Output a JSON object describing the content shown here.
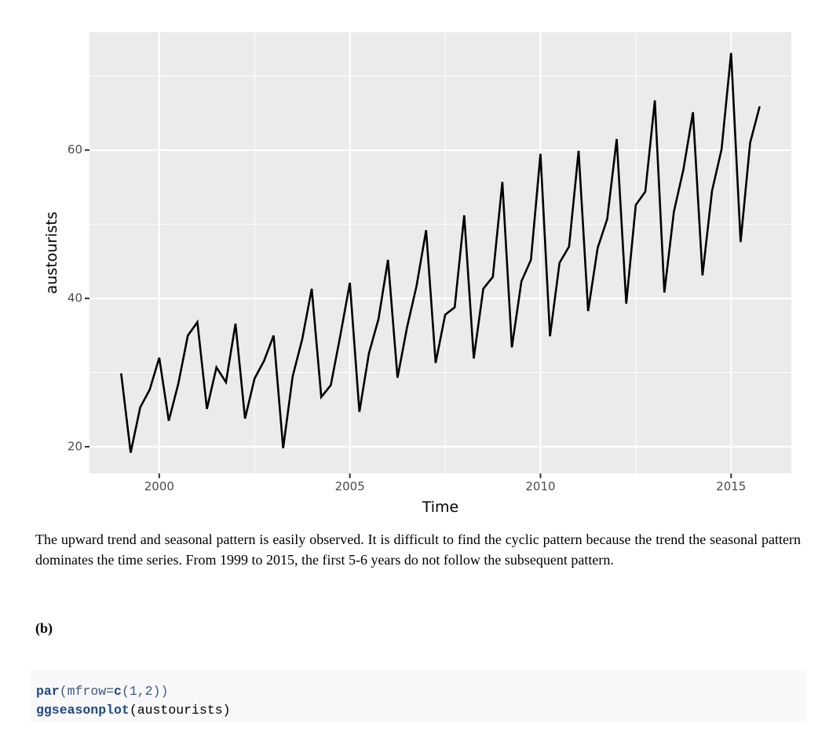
{
  "chart_data": {
    "type": "line",
    "x_label": "Time",
    "y_label": "austourists",
    "color": "#000000",
    "grid": true,
    "xlim": [
      1998.17,
      2016.58
    ],
    "ylim": [
      16.4,
      75.9
    ],
    "xticks": [
      2000,
      2005,
      2010,
      2015
    ],
    "yticks": [
      20,
      40,
      60
    ],
    "x_minor_ticks": [
      2002.5,
      2007.5,
      2012.5
    ],
    "y_minor_ticks": [
      30,
      50,
      70
    ],
    "x": [
      1999,
      1999.25,
      1999.5,
      1999.75,
      2000,
      2000.25,
      2000.5,
      2000.75,
      2001,
      2001.25,
      2001.5,
      2001.75,
      2002,
      2002.25,
      2002.5,
      2002.75,
      2003,
      2003.25,
      2003.5,
      2003.75,
      2004,
      2004.25,
      2004.5,
      2004.75,
      2005,
      2005.25,
      2005.5,
      2005.75,
      2006,
      2006.25,
      2006.5,
      2006.75,
      2007,
      2007.25,
      2007.5,
      2007.75,
      2008,
      2008.25,
      2008.5,
      2008.75,
      2009,
      2009.25,
      2009.5,
      2009.75,
      2010,
      2010.25,
      2010.5,
      2010.75,
      2011,
      2011.25,
      2011.5,
      2011.75,
      2012,
      2012.25,
      2012.5,
      2012.75,
      2013,
      2013.25,
      2013.5,
      2013.75,
      2014,
      2014.25,
      2014.5,
      2014.75,
      2015,
      2015.25,
      2015.5,
      2015.75
    ],
    "values": [
      29.9,
      19.2,
      25.3,
      27.7,
      32.0,
      23.5,
      28.5,
      35.0,
      36.8,
      25.1,
      30.7,
      28.7,
      36.6,
      23.8,
      29.2,
      31.6,
      35.0,
      19.8,
      29.5,
      34.5,
      41.3,
      26.7,
      28.3,
      35.0,
      42.1,
      24.7,
      32.6,
      37.2,
      45.2,
      29.3,
      36.1,
      41.7,
      49.2,
      31.3,
      37.8,
      38.8,
      51.2,
      31.9,
      41.3,
      42.9,
      55.7,
      33.4,
      42.3,
      45.2,
      59.5,
      34.9,
      44.8,
      47.0,
      59.9,
      38.3,
      46.8,
      50.7,
      61.5,
      39.3,
      52.6,
      54.4,
      66.7,
      40.8,
      51.7,
      57.4,
      65.1,
      43.1,
      54.5,
      60.1,
      73.1,
      47.6,
      61.0,
      65.9
    ]
  },
  "paragraph": "The upward trend and seasonal pattern is easily observed. It is difficult to find the cyclic pattern because the trend the seasonal pattern dominates the time series. From 1999 to 2015, the first 5-6 years do not follow the subsequent pattern.",
  "heading": "(b)",
  "code": [
    [
      "par",
      "(mfrow=",
      "c",
      "(1,2))"
    ],
    [
      "ggseasonplot",
      "(austourists)"
    ]
  ]
}
